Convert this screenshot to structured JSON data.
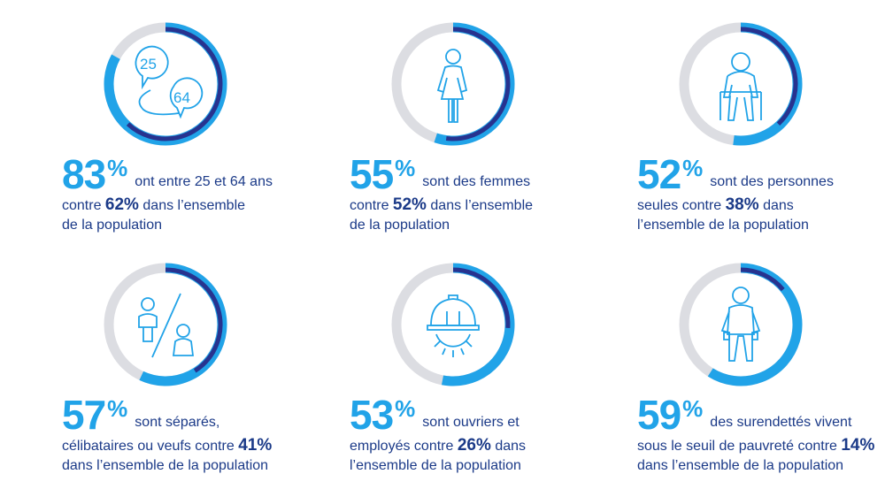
{
  "colors": {
    "light_blue": "#21a3e8",
    "dark_blue": "#27338f",
    "gray_track": "#dcdde2",
    "text_navy": "#1b3a88"
  },
  "chart_data": [
    {
      "type": "pie",
      "title": "83%",
      "value": 83,
      "comparison": 62,
      "text": {
        "big": "83",
        "pct": "%",
        "line1": "ont entre 25 et 64 ans",
        "line2_pre": "contre ",
        "line2_bold": "62%",
        "line2_post": " dans l’ensemble",
        "line3": "de la population"
      },
      "icon": {
        "name": "age-bubbles-icon",
        "label_a": "25",
        "label_b": "64"
      }
    },
    {
      "type": "pie",
      "title": "55%",
      "value": 55,
      "comparison": 52,
      "text": {
        "big": "55",
        "pct": "%",
        "line1": "sont des femmes",
        "line2_pre": "contre ",
        "line2_bold": "52%",
        "line2_post": " dans l’ensemble",
        "line3": "de la population"
      },
      "icon": {
        "name": "woman-icon"
      }
    },
    {
      "type": "pie",
      "title": "52%",
      "value": 52,
      "comparison": 38,
      "text": {
        "big": "52",
        "pct": "%",
        "line1": "sont des personnes",
        "line2_pre": "seules contre ",
        "line2_bold": "38%",
        "line2_post": " dans",
        "line3": "l’ensemble de la population"
      },
      "icon": {
        "name": "sitting-person-icon"
      }
    },
    {
      "type": "pie",
      "title": "57%",
      "value": 57,
      "comparison": 41,
      "text": {
        "big": "57",
        "pct": "%",
        "line1": "sont séparés,",
        "line2_pre": "célibataires ou veufs contre ",
        "line2_bold": "41%",
        "line2_post": "",
        "line3": "dans l’ensemble de la population"
      },
      "icon": {
        "name": "separated-couple-icon"
      }
    },
    {
      "type": "pie",
      "title": "53%",
      "value": 53,
      "comparison": 26,
      "text": {
        "big": "53",
        "pct": "%",
        "line1": "sont ouvriers et",
        "line2_pre": "employés contre ",
        "line2_bold": "26%",
        "line2_post": " dans",
        "line3": "l’ensemble de la population"
      },
      "icon": {
        "name": "hard-hat-gear-icon"
      }
    },
    {
      "type": "pie",
      "title": "59%",
      "value": 59,
      "comparison": 14,
      "text": {
        "big": "59",
        "pct": "%",
        "line1": "des surendettés vivent",
        "line2_pre": "sous le seuil de pauvreté contre ",
        "line2_bold": "14%",
        "line2_post": "",
        "line3": "dans l’ensemble de la population"
      },
      "icon": {
        "name": "empty-pockets-person-icon"
      }
    }
  ]
}
